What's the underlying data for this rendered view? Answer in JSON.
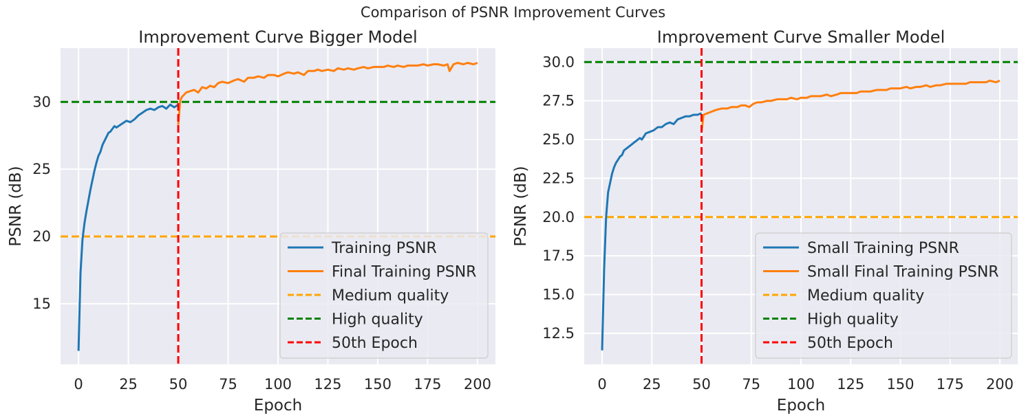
{
  "suptitle": "Comparison of PSNR Improvement Curves",
  "colors": {
    "plot_bg": "#EAEAF2",
    "grid": "#FFFFFF",
    "training": "#1F77B4",
    "final": "#FF7F0E",
    "medium": "#FFA500",
    "high": "#008000",
    "epoch50": "#FF0000"
  },
  "chart_data": [
    {
      "type": "line",
      "title": "Improvement Curve Bigger Model",
      "xlabel": "Epoch",
      "ylabel": "PSNR (dB)",
      "xlim": [
        -9,
        209
      ],
      "ylim": [
        10.5,
        34
      ],
      "xticks": [
        0,
        25,
        50,
        75,
        100,
        125,
        150,
        175,
        200
      ],
      "yticks": [
        15,
        20,
        25,
        30
      ],
      "ytick_labels": [
        "15",
        "20",
        "25",
        "30"
      ],
      "grid": true,
      "legend_position": "lower right",
      "hlines": [
        {
          "name": "Medium quality",
          "y": 20,
          "color": "#FFA500"
        },
        {
          "name": "High quality",
          "y": 30,
          "color": "#008000"
        }
      ],
      "vlines": [
        {
          "name": "50th Epoch",
          "x": 50,
          "color": "#FF0000"
        }
      ],
      "series": [
        {
          "name": "Training PSNR",
          "color": "#1F77B4",
          "x": [
            0,
            1,
            2,
            3,
            4,
            5,
            6,
            7,
            8,
            9,
            10,
            11,
            12,
            13,
            14,
            15,
            16,
            17,
            18,
            19,
            20,
            22,
            24,
            26,
            28,
            30,
            32,
            34,
            36,
            38,
            40,
            42,
            44,
            46,
            48,
            50
          ],
          "y": [
            11.5,
            17.3,
            19.8,
            21.0,
            21.9,
            22.7,
            23.5,
            24.2,
            24.9,
            25.5,
            26.0,
            26.3,
            26.8,
            27.1,
            27.4,
            27.7,
            27.8,
            28.0,
            28.2,
            28.1,
            28.2,
            28.4,
            28.6,
            28.5,
            28.7,
            29.0,
            29.2,
            29.4,
            29.5,
            29.4,
            29.6,
            29.7,
            29.5,
            29.8,
            29.6,
            29.8
          ]
        },
        {
          "name": "Final Training PSNR",
          "color": "#FF7F0E",
          "x": [
            50,
            51,
            52,
            54,
            56,
            58,
            60,
            62,
            64,
            66,
            68,
            70,
            72,
            75,
            78,
            80,
            83,
            85,
            88,
            90,
            93,
            95,
            98,
            100,
            103,
            105,
            108,
            110,
            113,
            115,
            118,
            120,
            122,
            125,
            128,
            130,
            133,
            135,
            138,
            140,
            143,
            145,
            148,
            150,
            153,
            155,
            158,
            160,
            163,
            165,
            168,
            170,
            173,
            175,
            178,
            180,
            183,
            185,
            186,
            188,
            190,
            193,
            195,
            198,
            200
          ],
          "y": [
            28.3,
            30.1,
            30.4,
            30.7,
            30.8,
            30.9,
            30.7,
            31.1,
            31.0,
            31.2,
            31.1,
            31.4,
            31.5,
            31.4,
            31.6,
            31.7,
            31.5,
            31.8,
            31.8,
            31.9,
            31.8,
            32.0,
            32.0,
            31.9,
            32.1,
            32.2,
            32.1,
            32.2,
            32.0,
            32.3,
            32.3,
            32.4,
            32.3,
            32.4,
            32.3,
            32.5,
            32.4,
            32.5,
            32.4,
            32.5,
            32.6,
            32.5,
            32.6,
            32.6,
            32.6,
            32.7,
            32.6,
            32.7,
            32.6,
            32.7,
            32.7,
            32.7,
            32.8,
            32.7,
            32.8,
            32.8,
            32.7,
            32.8,
            32.3,
            32.8,
            32.9,
            32.8,
            32.9,
            32.8,
            32.9
          ]
        }
      ]
    },
    {
      "type": "line",
      "title": "Improvement Curve Smaller Model",
      "xlabel": "Epoch",
      "ylabel": "PSNR (dB)",
      "xlim": [
        -9,
        209
      ],
      "ylim": [
        10.5,
        30.9
      ],
      "xticks": [
        0,
        25,
        50,
        75,
        100,
        125,
        150,
        175,
        200
      ],
      "yticks": [
        12.5,
        15.0,
        17.5,
        20.0,
        22.5,
        25.0,
        27.5,
        30.0
      ],
      "ytick_labels": [
        "12.5",
        "15.0",
        "17.5",
        "20.0",
        "22.5",
        "25.0",
        "27.5",
        "30.0"
      ],
      "grid": true,
      "legend_position": "lower right",
      "hlines": [
        {
          "name": "Medium quality",
          "y": 20,
          "color": "#FFA500"
        },
        {
          "name": "High quality",
          "y": 30,
          "color": "#008000"
        }
      ],
      "vlines": [
        {
          "name": "50th Epoch",
          "x": 50,
          "color": "#FF0000"
        }
      ],
      "series": [
        {
          "name": "Small Training PSNR",
          "color": "#1F77B4",
          "x": [
            0,
            1,
            2,
            3,
            4,
            5,
            6,
            7,
            8,
            9,
            10,
            11,
            12,
            13,
            14,
            15,
            16,
            17,
            18,
            19,
            20,
            22,
            24,
            26,
            28,
            30,
            32,
            34,
            36,
            38,
            40,
            42,
            44,
            46,
            48,
            50
          ],
          "y": [
            11.4,
            16.6,
            20.0,
            21.6,
            22.2,
            22.8,
            23.2,
            23.5,
            23.7,
            23.9,
            24.0,
            24.3,
            24.4,
            24.5,
            24.6,
            24.7,
            24.8,
            24.9,
            25.0,
            25.1,
            25.0,
            25.4,
            25.5,
            25.6,
            25.8,
            25.8,
            26.0,
            26.1,
            26.0,
            26.3,
            26.4,
            26.5,
            26.5,
            26.6,
            26.6,
            26.7
          ]
        },
        {
          "name": "Small Final Training PSNR",
          "color": "#FF7F0E",
          "x": [
            50,
            51,
            53,
            55,
            57,
            60,
            63,
            65,
            68,
            70,
            72,
            74,
            76,
            78,
            80,
            83,
            85,
            88,
            90,
            93,
            95,
            98,
            100,
            103,
            105,
            108,
            110,
            113,
            115,
            118,
            120,
            123,
            125,
            128,
            130,
            133,
            135,
            138,
            140,
            143,
            145,
            148,
            150,
            153,
            155,
            158,
            160,
            163,
            165,
            168,
            170,
            173,
            175,
            178,
            180,
            183,
            185,
            188,
            190,
            193,
            195,
            198,
            200
          ],
          "y": [
            25.5,
            26.6,
            26.7,
            26.8,
            26.9,
            27.0,
            27.0,
            27.1,
            27.1,
            27.2,
            27.2,
            27.1,
            27.3,
            27.4,
            27.4,
            27.5,
            27.5,
            27.6,
            27.6,
            27.6,
            27.7,
            27.6,
            27.7,
            27.7,
            27.8,
            27.8,
            27.8,
            27.9,
            27.8,
            27.9,
            28.0,
            28.0,
            28.0,
            28.0,
            28.1,
            28.1,
            28.1,
            28.2,
            28.2,
            28.2,
            28.3,
            28.3,
            28.3,
            28.4,
            28.3,
            28.4,
            28.4,
            28.5,
            28.4,
            28.5,
            28.5,
            28.6,
            28.6,
            28.6,
            28.6,
            28.6,
            28.7,
            28.7,
            28.7,
            28.7,
            28.8,
            28.7,
            28.8
          ]
        }
      ]
    }
  ]
}
